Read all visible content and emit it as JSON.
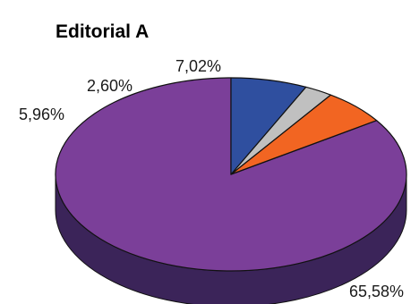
{
  "chart_data": {
    "type": "pie",
    "style": "3d",
    "title": "Editorial A",
    "legend": "none",
    "slices": [
      {
        "label": "65,58%",
        "value": 65.58,
        "color": "#7b3f99",
        "side_color": "#3b2459"
      },
      {
        "label": "5,96%",
        "value": 5.96,
        "color": "#f26522",
        "side_color": "#8a3a14"
      },
      {
        "label": "2,60%",
        "value": 2.6,
        "color": "#c0c0c0",
        "side_color": "#6e6e6e"
      },
      {
        "label": "7,02%",
        "value": 7.02,
        "color": "#2f4f9f",
        "side_color": "#1b2d5c"
      }
    ]
  }
}
